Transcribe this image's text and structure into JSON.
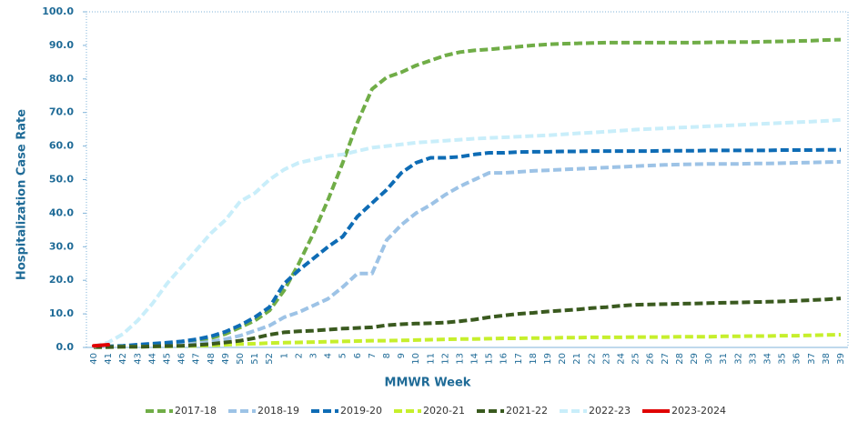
{
  "chart_data": {
    "type": "line",
    "y_label": "Hospitalization Case Rate",
    "x_label": "MMWR Week",
    "categories": [
      "40",
      "41",
      "42",
      "43",
      "44",
      "45",
      "46",
      "47",
      "48",
      "49",
      "50",
      "51",
      "52",
      "1",
      "2",
      "3",
      "4",
      "5",
      "6",
      "7",
      "8",
      "9",
      "10",
      "11",
      "12",
      "13",
      "14",
      "15",
      "16",
      "17",
      "18",
      "19",
      "20",
      "21",
      "22",
      "23",
      "24",
      "25",
      "26",
      "27",
      "28",
      "29",
      "30",
      "31",
      "32",
      "33",
      "34",
      "35",
      "36",
      "37",
      "38",
      "39"
    ],
    "ylim": [
      0,
      100
    ],
    "yticks": [
      {
        "value": 0,
        "label": "0.0"
      },
      {
        "value": 10,
        "label": "10.0"
      },
      {
        "value": 20,
        "label": "20.0"
      },
      {
        "value": 30,
        "label": "30.0"
      },
      {
        "value": 40,
        "label": "40.0"
      },
      {
        "value": 50,
        "label": "50.0"
      },
      {
        "value": 60,
        "label": "60.0"
      },
      {
        "value": 70,
        "label": "70.0"
      },
      {
        "value": 80,
        "label": "80.0"
      },
      {
        "value": 90,
        "label": "90.0"
      },
      {
        "value": 100,
        "label": "100.0"
      }
    ],
    "grid": false,
    "legend": "bottom",
    "series": [
      {
        "name": "2017-18",
        "color": "#70ad47",
        "values": [
          0.2,
          0.3,
          0.4,
          0.6,
          0.8,
          1.1,
          1.4,
          1.9,
          2.8,
          4,
          6,
          8,
          11,
          17,
          25,
          34,
          44,
          55,
          67,
          77,
          80.5,
          82,
          84,
          85.5,
          87,
          88,
          88.5,
          88.8,
          89.2,
          89.6,
          90,
          90.3,
          90.5,
          90.6,
          90.7,
          90.8,
          90.8,
          90.8,
          90.8,
          90.8,
          90.8,
          90.8,
          90.9,
          91,
          91,
          91,
          91.1,
          91.2,
          91.3,
          91.4,
          91.6,
          91.7
        ]
      },
      {
        "name": "2018-19",
        "color": "#9dc3e6",
        "values": [
          0.2,
          0.2,
          0.3,
          0.4,
          0.5,
          0.7,
          0.9,
          1.2,
          1.7,
          2.5,
          3.5,
          5,
          6.5,
          9,
          10.5,
          12.5,
          14.5,
          18,
          22,
          22,
          32,
          36.5,
          40,
          42.5,
          45.5,
          48,
          50,
          52,
          52,
          52.3,
          52.6,
          52.8,
          53,
          53.2,
          53.4,
          53.6,
          53.8,
          54,
          54.2,
          54.4,
          54.5,
          54.6,
          54.7,
          54.7,
          54.7,
          54.8,
          54.8,
          54.9,
          55,
          55.1,
          55.2,
          55.3
        ]
      },
      {
        "name": "2019-20",
        "color": "#0e6cb5",
        "values": [
          0.2,
          0.3,
          0.5,
          0.8,
          1.1,
          1.4,
          1.8,
          2.4,
          3.3,
          4.7,
          6.6,
          9,
          12,
          19,
          23,
          26.5,
          30,
          33,
          39,
          43,
          47,
          52,
          55,
          56.5,
          56.5,
          56.8,
          57.5,
          58,
          58,
          58.2,
          58.3,
          58.3,
          58.4,
          58.4,
          58.5,
          58.5,
          58.5,
          58.5,
          58.5,
          58.6,
          58.6,
          58.6,
          58.7,
          58.7,
          58.7,
          58.7,
          58.7,
          58.8,
          58.8,
          58.8,
          58.9,
          58.9
        ]
      },
      {
        "name": "2020-21",
        "color": "#c6ef2c",
        "values": [
          0.1,
          0.1,
          0.2,
          0.2,
          0.3,
          0.3,
          0.4,
          0.5,
          0.6,
          0.8,
          1,
          1.1,
          1.3,
          1.4,
          1.5,
          1.6,
          1.7,
          1.8,
          1.9,
          2,
          2,
          2.1,
          2.2,
          2.3,
          2.4,
          2.5,
          2.5,
          2.6,
          2.7,
          2.7,
          2.8,
          2.8,
          2.9,
          2.9,
          3,
          3,
          3,
          3.1,
          3.1,
          3.1,
          3.2,
          3.2,
          3.2,
          3.3,
          3.3,
          3.4,
          3.4,
          3.5,
          3.5,
          3.6,
          3.7,
          3.8
        ]
      },
      {
        "name": "2021-22",
        "color": "#3a5a1f",
        "values": [
          0.1,
          0.1,
          0.2,
          0.2,
          0.3,
          0.4,
          0.5,
          0.7,
          1,
          1.5,
          2,
          2.8,
          3.8,
          4.5,
          4.8,
          5,
          5.3,
          5.6,
          5.8,
          6,
          6.6,
          6.9,
          7.1,
          7.2,
          7.4,
          7.8,
          8.3,
          9,
          9.5,
          10,
          10.3,
          10.7,
          11,
          11.3,
          11.7,
          12,
          12.4,
          12.7,
          12.8,
          12.9,
          13,
          13.1,
          13.2,
          13.3,
          13.4,
          13.5,
          13.6,
          13.7,
          13.9,
          14.1,
          14.3,
          14.6
        ]
      },
      {
        "name": "2022-23",
        "color": "#c9eefa",
        "values": [
          0.3,
          1.5,
          4,
          8,
          13,
          19,
          24,
          29,
          34,
          38,
          43.5,
          46,
          50,
          53,
          55,
          56,
          57,
          57.5,
          58.5,
          59.5,
          60,
          60.5,
          61,
          61.3,
          61.6,
          61.9,
          62.2,
          62.4,
          62.6,
          62.8,
          63,
          63.2,
          63.5,
          63.8,
          64,
          64.3,
          64.6,
          64.9,
          65.1,
          65.3,
          65.5,
          65.7,
          65.9,
          66.1,
          66.3,
          66.5,
          66.7,
          66.9,
          67.1,
          67.3,
          67.5,
          67.8
        ]
      },
      {
        "name": "2023-2024",
        "color": "#e00000",
        "dash": false,
        "values": [
          0.5,
          0.8,
          null,
          null,
          null,
          null,
          null,
          null,
          null,
          null,
          null,
          null,
          null,
          null,
          null,
          null,
          null,
          null,
          null,
          null,
          null,
          null,
          null,
          null,
          null,
          null,
          null,
          null,
          null,
          null,
          null,
          null,
          null,
          null,
          null,
          null,
          null,
          null,
          null,
          null,
          null,
          null,
          null,
          null,
          null,
          null,
          null,
          null,
          null,
          null,
          null,
          null
        ]
      }
    ]
  }
}
